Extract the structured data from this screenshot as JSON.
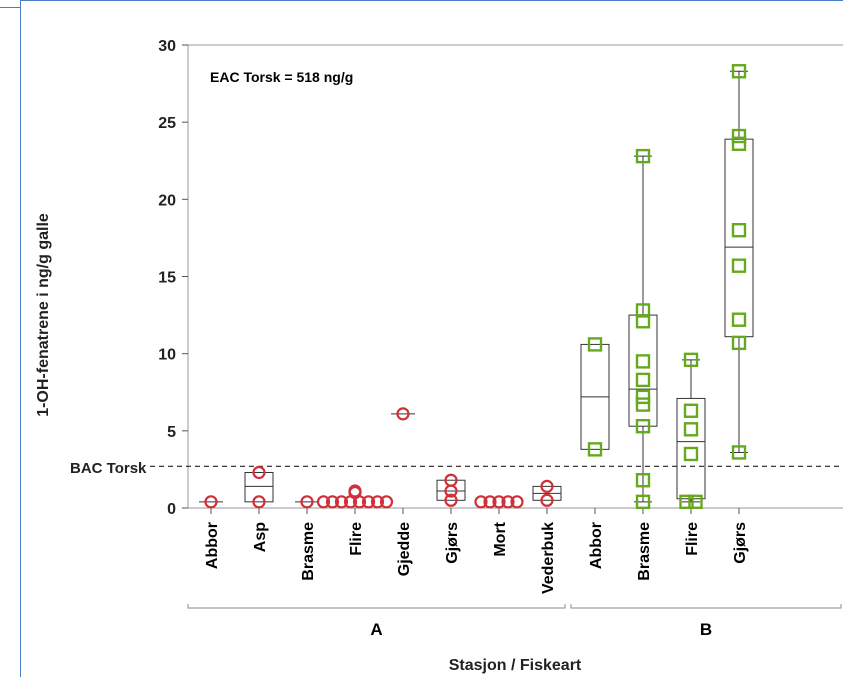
{
  "chart_data": {
    "type": "boxplot",
    "ylabel": "1-OH-fenatrene i ng/g galle",
    "xlabel": "Stasjon / Fiskeart",
    "ylim": [
      0,
      30
    ],
    "yticks": [
      0,
      5,
      10,
      15,
      20,
      25,
      30
    ],
    "annotation": "EAC Torsk = 518 ng/g",
    "reference_line": {
      "label": "BAC Torsk",
      "value": 2.7
    },
    "groups": [
      {
        "name": "A",
        "color": "#d0303a",
        "marker": "circle",
        "categories": [
          {
            "label": "Abbor",
            "points": [
              0.4
            ],
            "box": null
          },
          {
            "label": "Asp",
            "points": [
              0.4,
              2.3
            ],
            "box": {
              "q1": 0.4,
              "median": 1.4,
              "q3": 2.3
            }
          },
          {
            "label": "Brasme",
            "points": [
              0.4
            ],
            "box": null
          },
          {
            "label": "Flire",
            "points": [
              0.4,
              0.4,
              0.4,
              0.4,
              0.4,
              0.4,
              0.4,
              0.4,
              1.0,
              1.1
            ],
            "box": null
          },
          {
            "label": "Gjedde",
            "points": [
              6.1
            ],
            "box": null
          },
          {
            "label": "Gjørs",
            "points": [
              0.5,
              1.1,
              1.8
            ],
            "box": {
              "q1": 0.5,
              "median": 1.1,
              "q3": 1.8
            }
          },
          {
            "label": "Mort",
            "points": [
              0.4,
              0.4,
              0.4,
              0.4,
              0.4
            ],
            "box": null
          },
          {
            "label": "Vederbuk",
            "points": [
              0.5,
              1.4
            ],
            "box": {
              "q1": 0.5,
              "median": 0.95,
              "q3": 1.4
            }
          }
        ]
      },
      {
        "name": "B",
        "color": "#66a81e",
        "marker": "square",
        "categories": [
          {
            "label": "Abbor",
            "points": [
              3.8,
              10.6
            ],
            "box": {
              "q1": 3.8,
              "median": 7.2,
              "q3": 10.6
            }
          },
          {
            "label": "Brasme",
            "points": [
              0.4,
              1.8,
              5.3,
              6.7,
              7.2,
              8.3,
              9.5,
              12.1,
              12.8,
              22.8
            ],
            "box": {
              "q1": 5.3,
              "median": 7.7,
              "q3": 12.5,
              "lo": 0.4,
              "hi": 22.8
            }
          },
          {
            "label": "Flire",
            "points": [
              0.4,
              0.4,
              3.5,
              5.1,
              6.3,
              9.6
            ],
            "box": {
              "q1": 0.6,
              "median": 4.3,
              "q3": 7.1,
              "lo": 0.4,
              "hi": 9.6
            }
          },
          {
            "label": "Gjørs",
            "points": [
              3.6,
              10.7,
              12.2,
              15.7,
              18.0,
              23.6,
              24.1,
              28.3
            ],
            "box": {
              "q1": 11.1,
              "median": 16.9,
              "q3": 23.9,
              "lo": 3.6,
              "hi": 28.3
            }
          }
        ]
      }
    ]
  }
}
